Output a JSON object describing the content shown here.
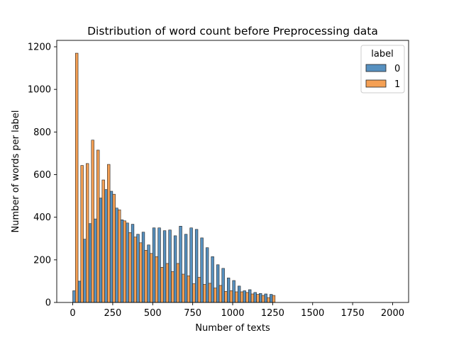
{
  "chart_data": {
    "type": "bar",
    "title": "Distribution of word count before Preprocessing data",
    "xlabel": "Number of texts",
    "ylabel": "Number of words per label",
    "xlim": [
      -100,
      2100
    ],
    "ylim": [
      0,
      1230
    ],
    "bin_width": 33.3,
    "bin_start": 0,
    "xticks": [
      0,
      250,
      500,
      750,
      1000,
      1250,
      1500,
      1750,
      2000
    ],
    "xtick_labels": [
      "0",
      "250",
      "500",
      "750",
      "1000",
      "1250",
      "1500",
      "1750",
      "2000"
    ],
    "yticks": [
      0,
      200,
      400,
      600,
      800,
      1000,
      1200
    ],
    "ytick_labels": [
      "0",
      "200",
      "400",
      "600",
      "800",
      "1000",
      "1200"
    ],
    "legend": {
      "title": "label",
      "position": "top-right"
    },
    "colors": {
      "0": "#5791c0",
      "1": "#f5a054"
    },
    "series": [
      {
        "name": "0",
        "values": [
          55,
          100,
          297,
          370,
          392,
          490,
          530,
          522,
          443,
          388,
          373,
          367,
          320,
          330,
          270,
          350,
          350,
          337,
          340,
          313,
          358,
          320,
          350,
          343,
          303,
          257,
          215,
          177,
          160,
          115,
          103,
          77,
          55,
          60,
          47,
          42,
          40,
          38
        ]
      },
      {
        "name": "1",
        "values": [
          1170,
          643,
          652,
          762,
          715,
          575,
          648,
          508,
          435,
          383,
          328,
          307,
          280,
          245,
          230,
          215,
          165,
          183,
          145,
          183,
          133,
          125,
          88,
          118,
          85,
          90,
          68,
          80,
          52,
          55,
          50,
          50,
          47,
          40,
          38,
          33,
          23,
          33
        ]
      }
    ]
  }
}
